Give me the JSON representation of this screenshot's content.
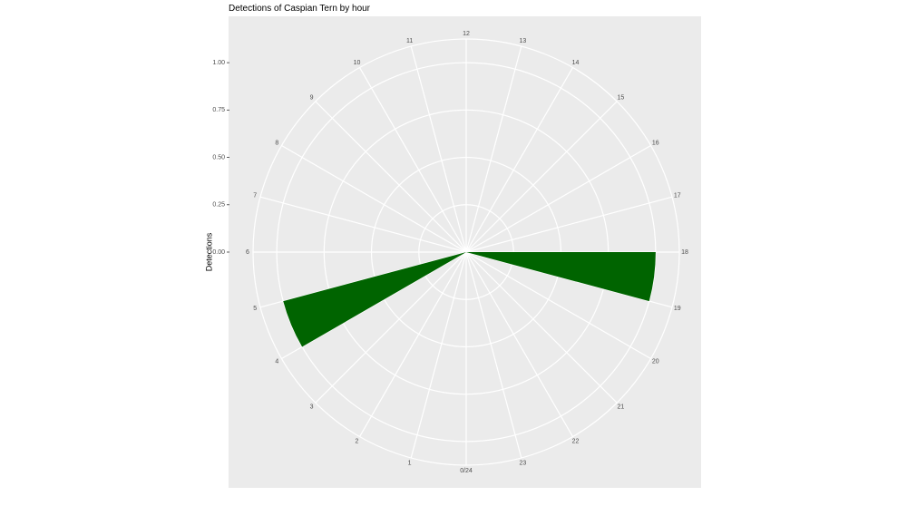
{
  "chart_data": {
    "type": "polar-bar",
    "title": "Detections of Caspian Tern by hour",
    "y_label": "Detections",
    "x": [
      4,
      18
    ],
    "values": [
      1,
      1
    ],
    "bar_width": 1,
    "color": "#006400",
    "xlim": [
      0,
      24
    ],
    "xticks": [
      {
        "value": 0,
        "label": "0/24"
      },
      1,
      2,
      3,
      4,
      5,
      6,
      7,
      8,
      9,
      10,
      11,
      12,
      13,
      14,
      15,
      16,
      17,
      18,
      19,
      20,
      21,
      22,
      23
    ],
    "ylim": [
      0,
      1.125
    ],
    "yticks": [
      {
        "value": 0,
        "label": "0.00"
      },
      {
        "value": 0.25,
        "label": "0.25"
      },
      {
        "value": 0.5,
        "label": "0.50"
      },
      {
        "value": 0.75,
        "label": "0.75"
      },
      {
        "value": 1,
        "label": "1.00"
      }
    ],
    "grid": true
  }
}
